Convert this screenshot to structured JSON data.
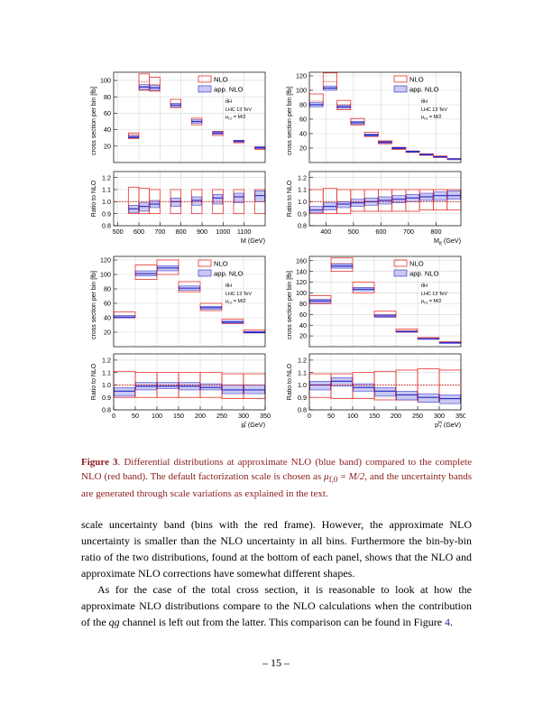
{
  "chart_data": [
    {
      "type": "bar",
      "panel": "M",
      "xlabel": "M (GeV)",
      "ylabel": "cross section per bin [fb]",
      "ratio_ylabel": "Ratio to NLO",
      "x_edges": [
        500,
        550,
        600,
        650,
        700,
        750,
        800,
        850,
        900,
        950,
        1000,
        1050,
        1100,
        1150
      ],
      "x_ticks": [
        500,
        600,
        700,
        800,
        900,
        1000,
        1100
      ],
      "plotted_bins": [
        [
          550,
          600
        ],
        [
          600,
          650
        ],
        [
          650,
          700
        ],
        [
          750,
          800
        ],
        [
          850,
          900
        ],
        [
          950,
          1000
        ],
        [
          1050,
          1100
        ],
        [
          1150,
          1200
        ]
      ],
      "x_range": [
        480,
        1200
      ],
      "ylim": [
        0,
        110
      ],
      "y_ticks": [
        20,
        40,
        60,
        80,
        100
      ],
      "nlo": [
        {
          "central": 34,
          "low": 29,
          "high": 36
        },
        {
          "central": 98,
          "low": 88,
          "high": 108
        },
        {
          "central": 95,
          "low": 87,
          "high": 104
        },
        {
          "central": 72,
          "low": 67,
          "high": 77
        },
        {
          "central": 50,
          "low": 46,
          "high": 54
        },
        {
          "central": 36,
          "low": 33,
          "high": 38
        },
        {
          "central": 26,
          "low": 24,
          "high": 27
        },
        {
          "central": 18,
          "low": 16,
          "high": 19
        }
      ],
      "approx": [
        {
          "central": 31,
          "low": 30,
          "high": 33
        },
        {
          "central": 92,
          "low": 89,
          "high": 95
        },
        {
          "central": 91,
          "low": 88,
          "high": 94
        },
        {
          "central": 70,
          "low": 68,
          "high": 72
        },
        {
          "central": 50,
          "low": 48,
          "high": 52
        },
        {
          "central": 36,
          "low": 34.5,
          "high": 37.5
        },
        {
          "central": 26,
          "low": 25,
          "high": 27
        },
        {
          "central": 18,
          "low": 17,
          "high": 19
        }
      ],
      "ratio_ylim": [
        0.8,
        1.25
      ],
      "ratio_ticks": [
        0.8,
        0.9,
        1.0,
        1.1,
        1.2
      ],
      "ratio_nlo": [
        [
          0.9,
          1.12
        ],
        [
          0.9,
          1.11
        ],
        [
          0.9,
          1.1
        ],
        [
          0.9,
          1.1
        ],
        [
          0.9,
          1.1
        ],
        [
          0.9,
          1.1
        ],
        [
          0.9,
          1.1
        ],
        [
          0.9,
          1.1
        ]
      ],
      "ratio_approx": [
        [
          0.91,
          0.97
        ],
        [
          0.92,
          0.99
        ],
        [
          0.95,
          1.01
        ],
        [
          0.96,
          1.03
        ],
        [
          0.97,
          1.04
        ],
        [
          0.98,
          1.06
        ],
        [
          0.99,
          1.07
        ],
        [
          1.0,
          1.09
        ]
      ],
      "ratio_approx_central": [
        0.94,
        0.96,
        0.98,
        1.0,
        1.01,
        1.03,
        1.04,
        1.05
      ],
      "legend": [
        "NLO",
        "app. NLO"
      ],
      "annotations": [
        "tt̄H",
        "LHC 13 TeV",
        "μ",
        "f,0",
        " = M/2"
      ]
    },
    {
      "type": "bar",
      "panel": "Mtt",
      "xlabel": "M",
      "xlabel_sub": "tt̄",
      "xlabel_unit": " (GeV)",
      "ylabel": "cross section per bin [fb]",
      "ratio_ylabel": "Ratio to NLO",
      "x_ticks": [
        400,
        500,
        600,
        700,
        800
      ],
      "plotted_bins": [
        [
          340,
          390
        ],
        [
          390,
          440
        ],
        [
          440,
          490
        ],
        [
          490,
          540
        ],
        [
          540,
          590
        ],
        [
          590,
          640
        ],
        [
          640,
          690
        ],
        [
          690,
          740
        ],
        [
          740,
          790
        ],
        [
          790,
          840
        ],
        [
          840,
          890
        ]
      ],
      "x_range": [
        340,
        890
      ],
      "ylim": [
        0,
        125
      ],
      "y_ticks": [
        20,
        40,
        60,
        80,
        100,
        120
      ],
      "nlo": [
        {
          "central": 85,
          "low": 78,
          "high": 95
        },
        {
          "central": 112,
          "low": 101,
          "high": 124
        },
        {
          "central": 80,
          "low": 73,
          "high": 86
        },
        {
          "central": 57,
          "low": 52,
          "high": 61
        },
        {
          "central": 39,
          "low": 36,
          "high": 42
        },
        {
          "central": 28,
          "low": 26,
          "high": 30
        },
        {
          "central": 20,
          "low": 18,
          "high": 21
        },
        {
          "central": 15,
          "low": 14,
          "high": 16
        },
        {
          "central": 11,
          "low": 10,
          "high": 12
        },
        {
          "central": 8,
          "low": 7,
          "high": 9
        },
        {
          "central": 5,
          "low": 4.5,
          "high": 5.5
        }
      ],
      "approx": [
        {
          "central": 80,
          "low": 77,
          "high": 83
        },
        {
          "central": 103,
          "low": 100,
          "high": 106
        },
        {
          "central": 77,
          "low": 75,
          "high": 79
        },
        {
          "central": 55,
          "low": 53.5,
          "high": 57
        },
        {
          "central": 38,
          "low": 36.5,
          "high": 39.5
        },
        {
          "central": 28,
          "low": 27,
          "high": 29
        },
        {
          "central": 20,
          "low": 19,
          "high": 21
        },
        {
          "central": 15,
          "low": 14.2,
          "high": 15.8
        },
        {
          "central": 11,
          "low": 10.3,
          "high": 11.7
        },
        {
          "central": 8,
          "low": 7.5,
          "high": 8.5
        },
        {
          "central": 5,
          "low": 4.7,
          "high": 5.3
        }
      ],
      "ratio_ylim": [
        0.8,
        1.25
      ],
      "ratio_ticks": [
        0.8,
        0.9,
        1.0,
        1.1,
        1.2
      ],
      "ratio_nlo": [
        [
          0.9,
          1.1
        ],
        [
          0.9,
          1.11
        ],
        [
          0.9,
          1.1
        ],
        [
          0.92,
          1.1
        ],
        [
          0.92,
          1.1
        ],
        [
          0.92,
          1.1
        ],
        [
          0.92,
          1.1
        ],
        [
          0.92,
          1.1
        ],
        [
          0.93,
          1.1
        ],
        [
          0.93,
          1.1
        ],
        [
          0.93,
          1.1
        ]
      ],
      "ratio_approx": [
        [
          0.91,
          0.96
        ],
        [
          0.93,
          0.99
        ],
        [
          0.95,
          1.0
        ],
        [
          0.96,
          1.02
        ],
        [
          0.97,
          1.03
        ],
        [
          0.98,
          1.04
        ],
        [
          0.99,
          1.05
        ],
        [
          1.0,
          1.06
        ],
        [
          1.01,
          1.07
        ],
        [
          1.01,
          1.08
        ],
        [
          1.02,
          1.09
        ]
      ],
      "ratio_approx_central": [
        0.93,
        0.96,
        0.98,
        0.99,
        1.0,
        1.01,
        1.02,
        1.03,
        1.04,
        1.05,
        1.05
      ],
      "legend": [
        "NLO",
        "app. NLO"
      ],
      "annotations": [
        "tt̄H",
        "LHC 13 TeV",
        "μ",
        "f,0",
        " = M/2"
      ]
    },
    {
      "type": "bar",
      "panel": "pT-top",
      "xlabel": "p",
      "xlabel_sub": "T",
      "xlabel_sup": "t",
      "xlabel_unit": " (GeV)",
      "ylabel": "cross section per bin [fb]",
      "ratio_ylabel": "Ratio to NLO",
      "x_ticks": [
        0,
        50,
        100,
        150,
        200,
        250,
        300,
        350
      ],
      "plotted_bins": [
        [
          0,
          50
        ],
        [
          50,
          100
        ],
        [
          100,
          150
        ],
        [
          150,
          200
        ],
        [
          200,
          250
        ],
        [
          250,
          300
        ],
        [
          300,
          350
        ]
      ],
      "x_range": [
        0,
        350
      ],
      "ylim": [
        0,
        125
      ],
      "y_ticks": [
        20,
        40,
        60,
        80,
        100,
        120
      ],
      "nlo": [
        {
          "central": 43,
          "low": 40,
          "high": 48
        },
        {
          "central": 103,
          "low": 93,
          "high": 113
        },
        {
          "central": 110,
          "low": 100,
          "high": 120
        },
        {
          "central": 83,
          "low": 76,
          "high": 90
        },
        {
          "central": 55,
          "low": 50,
          "high": 60
        },
        {
          "central": 35,
          "low": 32,
          "high": 38
        },
        {
          "central": 21,
          "low": 19,
          "high": 23
        }
      ],
      "approx": [
        {
          "central": 41,
          "low": 40,
          "high": 43
        },
        {
          "central": 101,
          "low": 98,
          "high": 105
        },
        {
          "central": 109,
          "low": 105,
          "high": 112
        },
        {
          "central": 81,
          "low": 78,
          "high": 84
        },
        {
          "central": 54,
          "low": 52,
          "high": 56
        },
        {
          "central": 34,
          "low": 32.5,
          "high": 35.5
        },
        {
          "central": 20,
          "low": 19,
          "high": 21
        }
      ],
      "ratio_ylim": [
        0.8,
        1.25
      ],
      "ratio_ticks": [
        0.8,
        0.9,
        1.0,
        1.1,
        1.2
      ],
      "ratio_nlo": [
        [
          0.9,
          1.11
        ],
        [
          0.9,
          1.1
        ],
        [
          0.9,
          1.1
        ],
        [
          0.9,
          1.1
        ],
        [
          0.9,
          1.1
        ],
        [
          0.89,
          1.09
        ],
        [
          0.89,
          1.09
        ]
      ],
      "ratio_approx": [
        [
          0.91,
          0.98
        ],
        [
          0.96,
          1.02
        ],
        [
          0.97,
          1.02
        ],
        [
          0.96,
          1.02
        ],
        [
          0.96,
          1.01
        ],
        [
          0.93,
          1.0
        ],
        [
          0.93,
          1.0
        ]
      ],
      "ratio_approx_central": [
        0.95,
        0.99,
        0.99,
        0.99,
        0.98,
        0.96,
        0.96
      ],
      "legend": [
        "NLO",
        "app. NLO"
      ],
      "annotations": [
        "tt̄H",
        "LHC 13 TeV",
        "μ",
        "f,0",
        " = M/2"
      ]
    },
    {
      "type": "bar",
      "panel": "pT-H",
      "xlabel": "p",
      "xlabel_sub": "T",
      "xlabel_sup": "H",
      "xlabel_unit": " (GeV)",
      "ylabel": "cross section per bin [fb]",
      "ratio_ylabel": "Ratio to NLO",
      "x_ticks": [
        0,
        50,
        100,
        150,
        200,
        250,
        300,
        350
      ],
      "plotted_bins": [
        [
          0,
          50
        ],
        [
          50,
          100
        ],
        [
          100,
          150
        ],
        [
          150,
          200
        ],
        [
          200,
          250
        ],
        [
          250,
          300
        ],
        [
          300,
          350
        ]
      ],
      "x_range": [
        0,
        350
      ],
      "ylim": [
        0,
        168
      ],
      "y_ticks": [
        20,
        40,
        60,
        80,
        100,
        120,
        140,
        160
      ],
      "nlo": [
        {
          "central": 88,
          "low": 80,
          "high": 95
        },
        {
          "central": 155,
          "low": 140,
          "high": 165
        },
        {
          "central": 110,
          "low": 100,
          "high": 120
        },
        {
          "central": 60,
          "low": 55,
          "high": 66
        },
        {
          "central": 30,
          "low": 27,
          "high": 33
        },
        {
          "central": 16,
          "low": 14,
          "high": 17
        },
        {
          "central": 8,
          "low": 7,
          "high": 9
        }
      ],
      "approx": [
        {
          "central": 85,
          "low": 82,
          "high": 88
        },
        {
          "central": 150,
          "low": 146,
          "high": 154
        },
        {
          "central": 107,
          "low": 104,
          "high": 110
        },
        {
          "central": 57,
          "low": 55,
          "high": 59
        },
        {
          "central": 28,
          "low": 27,
          "high": 29
        },
        {
          "central": 15,
          "low": 14.5,
          "high": 15.5
        },
        {
          "central": 7.5,
          "low": 7,
          "high": 8
        }
      ],
      "ratio_ylim": [
        0.8,
        1.25
      ],
      "ratio_ticks": [
        0.8,
        0.9,
        1.0,
        1.1,
        1.2
      ],
      "ratio_nlo": [
        [
          0.9,
          1.09
        ],
        [
          0.89,
          1.09
        ],
        [
          0.89,
          1.1
        ],
        [
          0.88,
          1.11
        ],
        [
          0.88,
          1.12
        ],
        [
          0.87,
          1.13
        ],
        [
          0.87,
          1.12
        ]
      ],
      "ratio_approx": [
        [
          0.96,
          1.03
        ],
        [
          0.99,
          1.06
        ],
        [
          0.95,
          1.01
        ],
        [
          0.91,
          0.98
        ],
        [
          0.88,
          0.95
        ],
        [
          0.86,
          0.93
        ],
        [
          0.85,
          0.92
        ]
      ],
      "ratio_approx_central": [
        1.0,
        1.03,
        0.98,
        0.95,
        0.92,
        0.9,
        0.89
      ],
      "legend": [
        "NLO",
        "app. NLO"
      ],
      "annotations": [
        "tt̄H",
        "LHC 13 TeV",
        "μ",
        "f,0",
        " = M/2"
      ]
    }
  ],
  "colors": {
    "nlo": "#e8322a",
    "approx_fill": "#c8c8f2",
    "approx_line": "#2828c8",
    "grid": "#d7d7d7",
    "ref_line": "#d00000",
    "caption": "#8b1a1a",
    "fig_link": "#2a2aa8"
  },
  "caption": {
    "label": "Figure 3",
    "text_a": ". Differential distributions at approximate NLO (blue band) compared to the complete NLO (red band). The default factorization scale is chosen as ",
    "mu": "μ",
    "mu_sub": "f,0",
    "text_b": " = ",
    "scale": "M/2",
    "text_c": ", and the uncertainty bands are generated through scale variations as explained in the text."
  },
  "body": {
    "p1": "scale uncertainty band (bins with the red frame). However, the approximate NLO uncertainty is smaller than the NLO uncertainty in all bins. Furthermore the bin-by-bin ratio of the two distributions, found at the bottom of each panel, shows that the NLO and approximate NLO corrections have somewhat different shapes.",
    "p2_a": "As for the case of the total cross section, it is reasonable to look at how the approximate NLO distributions compare to the NLO calculations when the contribution of the ",
    "qg": "qg",
    "p2_b": " channel is left out from the latter. This comparison can be found in Figure ",
    "fig_ref": "4",
    "p2_c": "."
  },
  "page_number": "– 15 –"
}
